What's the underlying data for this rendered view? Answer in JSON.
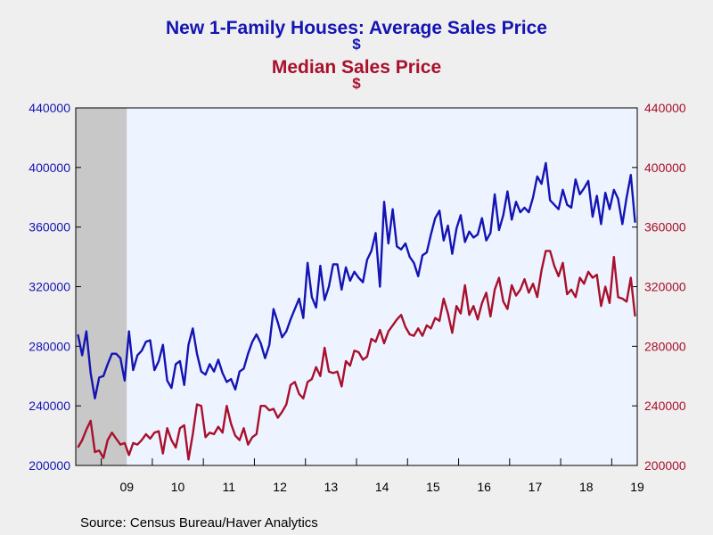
{
  "title": "New 1-Family Houses: Average Sales Price",
  "title_unit": "$",
  "subtitle": "Median Sales Price",
  "subtitle_unit": "$",
  "source": "Source:  Census Bureau/Haver Analytics",
  "colors": {
    "average": "#1414b4",
    "median": "#a8102c",
    "plot_bg": "#eef4ff",
    "recession": "#c8c8c8"
  },
  "chart_data": {
    "type": "line",
    "title": "New 1-Family Houses: Average Sales Price",
    "subtitle": "Median Sales Price",
    "x_start": "2008-07",
    "x_end": "2019-06",
    "x_ticks": [
      "09",
      "10",
      "11",
      "12",
      "13",
      "14",
      "15",
      "16",
      "17",
      "18",
      "19"
    ],
    "ylim": [
      200000,
      440000
    ],
    "y_ticks": [
      200000,
      240000,
      280000,
      320000,
      360000,
      400000,
      440000
    ],
    "y_tick_labels": [
      "200000",
      "240000",
      "280000",
      "320000",
      "360000",
      "400000",
      "440000"
    ],
    "recession": {
      "start": "2008-07",
      "end": "2009-06"
    },
    "series": [
      {
        "name": "New 1-Family Houses: Average Sales Price",
        "axis": "left",
        "color": "#1414b4",
        "values": [
          288000,
          274000,
          290000,
          262000,
          245000,
          259000,
          260000,
          268000,
          275000,
          275000,
          272000,
          257000,
          290000,
          264000,
          274000,
          277000,
          283000,
          284000,
          264000,
          270000,
          281000,
          257000,
          252000,
          268000,
          270000,
          254000,
          281000,
          292000,
          275000,
          263000,
          261000,
          268000,
          263000,
          271000,
          262000,
          256000,
          258000,
          251000,
          263000,
          265000,
          275000,
          283000,
          288000,
          282000,
          272000,
          281000,
          305000,
          296000,
          286000,
          290000,
          298000,
          305000,
          312000,
          299000,
          336000,
          313000,
          306000,
          334000,
          311000,
          320000,
          335000,
          335000,
          318000,
          333000,
          324000,
          330000,
          326000,
          323000,
          338000,
          344000,
          356000,
          320000,
          377000,
          349000,
          372000,
          347000,
          345000,
          349000,
          340000,
          336000,
          327000,
          341000,
          343000,
          355000,
          366000,
          371000,
          351000,
          361000,
          342000,
          359000,
          368000,
          350000,
          357000,
          353000,
          355000,
          366000,
          351000,
          356000,
          382000,
          358000,
          368000,
          384000,
          365000,
          377000,
          370000,
          373000,
          370000,
          380000,
          394000,
          389000,
          403000,
          378000,
          375000,
          372000,
          385000,
          375000,
          373000,
          392000,
          382000,
          386000,
          391000,
          367000,
          381000,
          362000,
          383000,
          372000,
          385000,
          379000,
          362000,
          380000,
          395000,
          363000
        ]
      },
      {
        "name": "Median Sales Price",
        "axis": "right",
        "color": "#a8102c",
        "values": [
          212000,
          217000,
          224000,
          230000,
          209000,
          210000,
          205000,
          217000,
          222000,
          218000,
          214000,
          215000,
          207000,
          215000,
          214000,
          217000,
          221000,
          218000,
          222000,
          223000,
          208000,
          225000,
          217000,
          212000,
          225000,
          227000,
          204000,
          221000,
          241000,
          240000,
          219000,
          222000,
          221000,
          226000,
          222000,
          240000,
          228000,
          220000,
          217000,
          225000,
          214000,
          219000,
          221000,
          240000,
          240000,
          237000,
          238000,
          232000,
          236000,
          241000,
          254000,
          256000,
          248000,
          245000,
          256000,
          258000,
          266000,
          260000,
          279000,
          263000,
          262000,
          263000,
          253000,
          270000,
          267000,
          277000,
          276000,
          271000,
          273000,
          285000,
          283000,
          291000,
          282000,
          290000,
          294000,
          298000,
          301000,
          293000,
          288000,
          287000,
          292000,
          287000,
          294000,
          292000,
          299000,
          297000,
          312000,
          302000,
          289000,
          307000,
          302000,
          321000,
          301000,
          307000,
          298000,
          309000,
          316000,
          300000,
          318000,
          326000,
          310000,
          305000,
          321000,
          314000,
          318000,
          325000,
          316000,
          322000,
          313000,
          331000,
          344000,
          344000,
          334000,
          327000,
          336000,
          315000,
          318000,
          313000,
          326000,
          322000,
          330000,
          326000,
          328000,
          307000,
          320000,
          309000,
          340000,
          313000,
          312000,
          310000,
          326000,
          300000
        ]
      }
    ]
  }
}
